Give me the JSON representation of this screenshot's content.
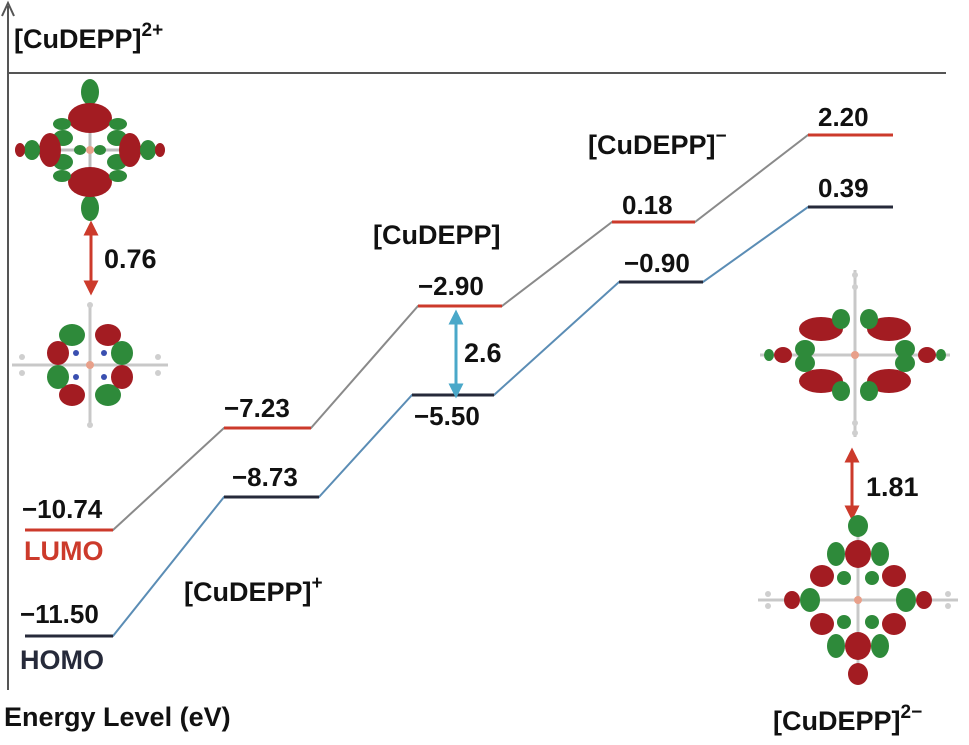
{
  "axis": {
    "title": "Energy Level (eV)",
    "color": "#555555"
  },
  "legend": {
    "lumo": {
      "label": "LUMO",
      "color": "#cc3a2b"
    },
    "homo": {
      "label": "HOMO",
      "color": "#262a3a"
    }
  },
  "connector_colors": {
    "lumo": "#8a8a8a",
    "homo": "#5b8db5"
  },
  "species": [
    {
      "id": "dication",
      "name": "[CuDEPP]",
      "charge": "2+",
      "lumo": "−10.74",
      "homo": "−11.50"
    },
    {
      "id": "cation",
      "name": "[CuDEPP]",
      "charge": "+",
      "lumo": "−7.23",
      "homo": "−8.73"
    },
    {
      "id": "neutral",
      "name": "[CuDEPP]",
      "charge": "",
      "lumo": "−2.90",
      "homo": "−5.50"
    },
    {
      "id": "anion",
      "name": "[CuDEPP]",
      "charge": "−",
      "lumo": "0.18",
      "homo": "−0.90"
    },
    {
      "id": "dianion",
      "name": "[CuDEPP]",
      "charge": "2−",
      "lumo": "2.20",
      "homo": "0.39"
    }
  ],
  "gaps": {
    "dication": {
      "value": "0.76",
      "color": "#cc3a2b"
    },
    "neutral": {
      "value": "2.6",
      "color": "#4aa8c9"
    },
    "dianion": {
      "value": "1.81",
      "color": "#cc3a2b"
    }
  },
  "orbital_colors": {
    "positive": "#a31c22",
    "negative": "#2e8a3a",
    "atom": "#c8c8c8",
    "nitrogen": "#3a4fb0",
    "copper": "#e8a08a"
  }
}
